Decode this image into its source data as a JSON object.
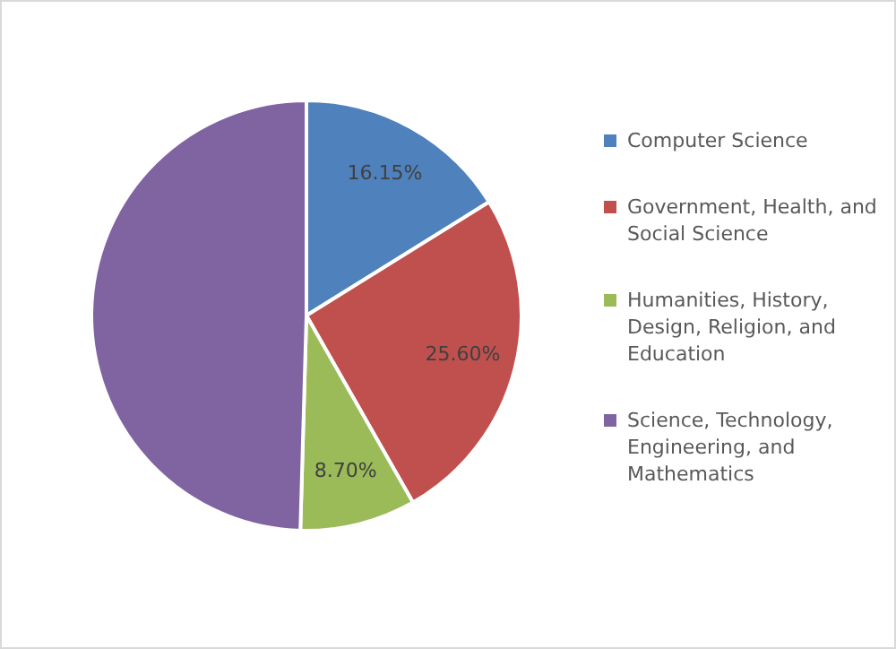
{
  "chart_data": {
    "type": "pie",
    "categories": [
      "Computer Science",
      "Government, Health, and Social Science",
      "Humanities, History, Design, Religion, and Education",
      "Science, Technology, Engineering, and Mathematics"
    ],
    "values": [
      16.15,
      25.6,
      8.7,
      49.55
    ],
    "colors": [
      "#4f81bd",
      "#c0504d",
      "#9bbb59",
      "#8064a2"
    ],
    "value_labels": [
      "16.15%",
      "25.60%",
      "8.70%",
      null
    ],
    "legend": "right"
  }
}
